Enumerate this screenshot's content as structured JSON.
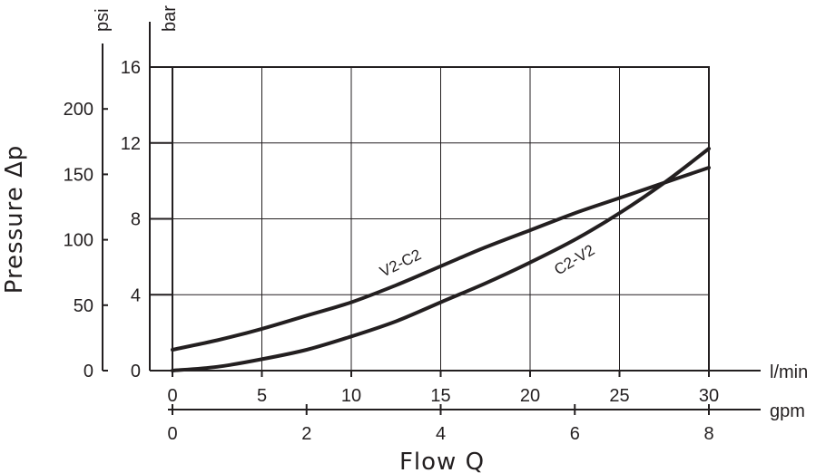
{
  "chart_data": {
    "type": "line",
    "x_axis": {
      "unit": "l/min",
      "range": [
        0,
        30
      ],
      "ticks": [
        0,
        5,
        10,
        15,
        20,
        25,
        30
      ]
    },
    "x_axis_secondary": {
      "unit": "gpm",
      "range": [
        0,
        8
      ],
      "ticks": [
        0,
        2,
        4,
        6,
        8
      ]
    },
    "xlabel": "Flow Q",
    "y_axis": {
      "unit": "bar",
      "range": [
        0,
        16
      ],
      "ticks": [
        0,
        4,
        8,
        12,
        16
      ]
    },
    "y_axis_secondary": {
      "unit": "psi",
      "range": [
        0,
        232
      ],
      "ticks": [
        0,
        50,
        100,
        150,
        200
      ]
    },
    "ylabel": "Pressure Δp",
    "grid": true,
    "series": [
      {
        "name": "V2-C2",
        "x": [
          0,
          2.5,
          5,
          7.5,
          10,
          12.5,
          15,
          17.5,
          20,
          22.5,
          25,
          27.5,
          30
        ],
        "y": [
          1.1,
          1.6,
          2.2,
          2.9,
          3.6,
          4.5,
          5.5,
          6.5,
          7.4,
          8.3,
          9.1,
          9.9,
          10.7
        ]
      },
      {
        "name": "C2-V2",
        "x": [
          0,
          2.5,
          5,
          7.5,
          10,
          12.5,
          15,
          17.5,
          20,
          22.5,
          25,
          27.5,
          30
        ],
        "y": [
          0,
          0.2,
          0.6,
          1.1,
          1.8,
          2.6,
          3.6,
          4.6,
          5.7,
          6.9,
          8.3,
          9.9,
          11.7
        ]
      }
    ]
  }
}
